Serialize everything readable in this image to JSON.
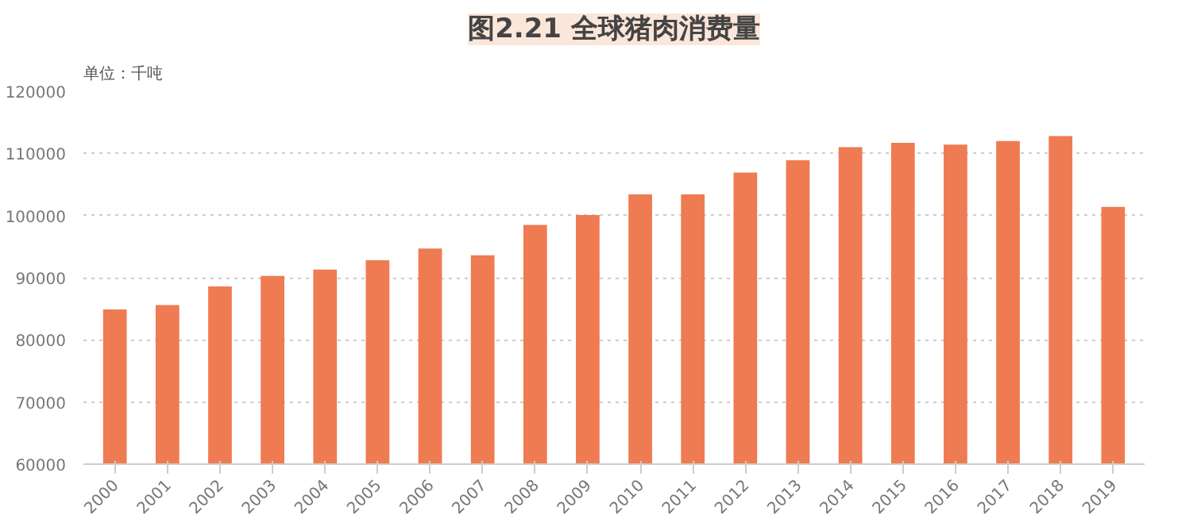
{
  "chart_data": {
    "type": "bar",
    "title": "图2.21 全球猪肉消费量",
    "annotations": [
      "单位：千吨"
    ],
    "categories": [
      "2000",
      "2001",
      "2002",
      "2003",
      "2004",
      "2005",
      "2006",
      "2007",
      "2008",
      "2009",
      "2010",
      "2011",
      "2012",
      "2013",
      "2014",
      "2015",
      "2016",
      "2017",
      "2018",
      "2019"
    ],
    "values": [
      84900,
      85600,
      88600,
      90300,
      91300,
      92800,
      94700,
      93600,
      98500,
      100100,
      103400,
      103400,
      106900,
      108900,
      111000,
      111700,
      111400,
      112000,
      112800,
      101400
    ],
    "color": "#ef7b52",
    "ylim": [
      60000,
      120000
    ],
    "yticks": [
      60000,
      70000,
      80000,
      90000,
      100000,
      110000,
      120000
    ],
    "grid": "y"
  }
}
